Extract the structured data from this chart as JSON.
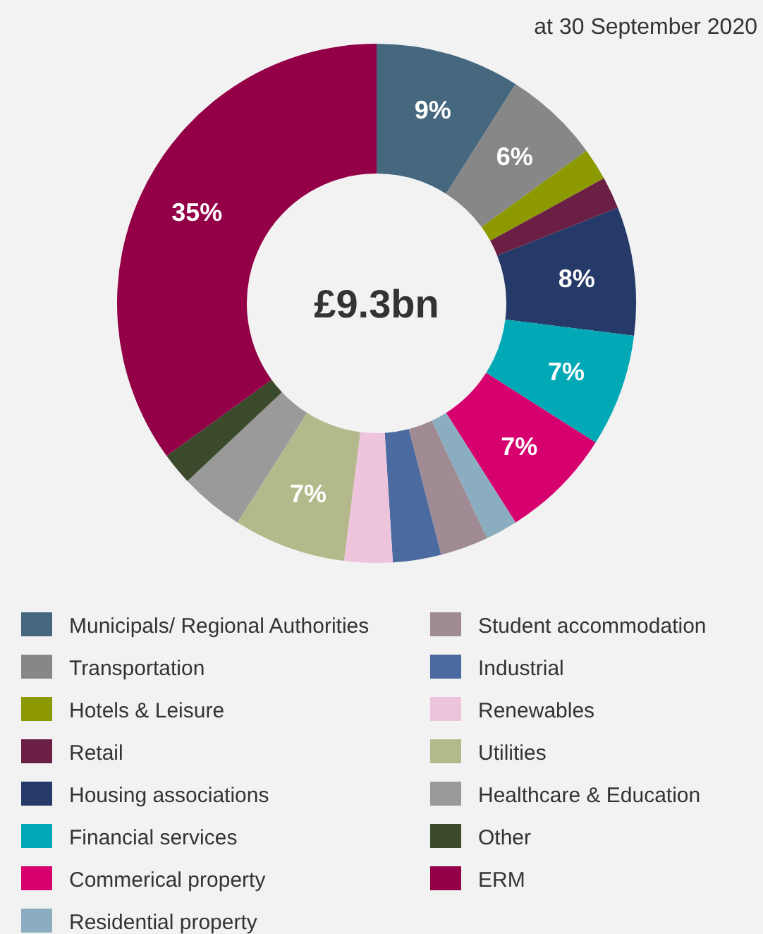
{
  "chart_data": {
    "type": "donut",
    "subtitle": "at 30 September 2020",
    "categories": [
      "Municipals/ Regional Authorities",
      "Transportation",
      "Hotels & Leisure",
      "Retail",
      "Housing associations",
      "Financial services",
      "Commerical property",
      "Residential property",
      "Student accommodation",
      "Industrial",
      "Renewables",
      "Utilities",
      "Healthcare & Education",
      "Other",
      "ERM"
    ],
    "values": [
      9,
      6,
      2,
      2,
      8,
      7,
      7,
      2,
      3,
      3,
      3,
      7,
      4,
      2,
      35
    ],
    "value_labels": [
      "9%",
      "6%",
      null,
      null,
      "8%",
      "7%",
      "7%",
      null,
      null,
      null,
      null,
      "7%",
      null,
      null,
      "35%"
    ],
    "colors": [
      "#45687f",
      "#878787",
      "#8c9a00",
      "#6b1f45",
      "#253a68",
      "#00a9b5",
      "#d6006f",
      "#8aaebf",
      "#a08a93",
      "#4a6aa0",
      "#eec4dd",
      "#b3b98a",
      "#9a9a9a",
      "#3b4a2a",
      "#930048"
    ],
    "annotations": [
      "£9.3bn"
    ],
    "legend": "bottom"
  }
}
